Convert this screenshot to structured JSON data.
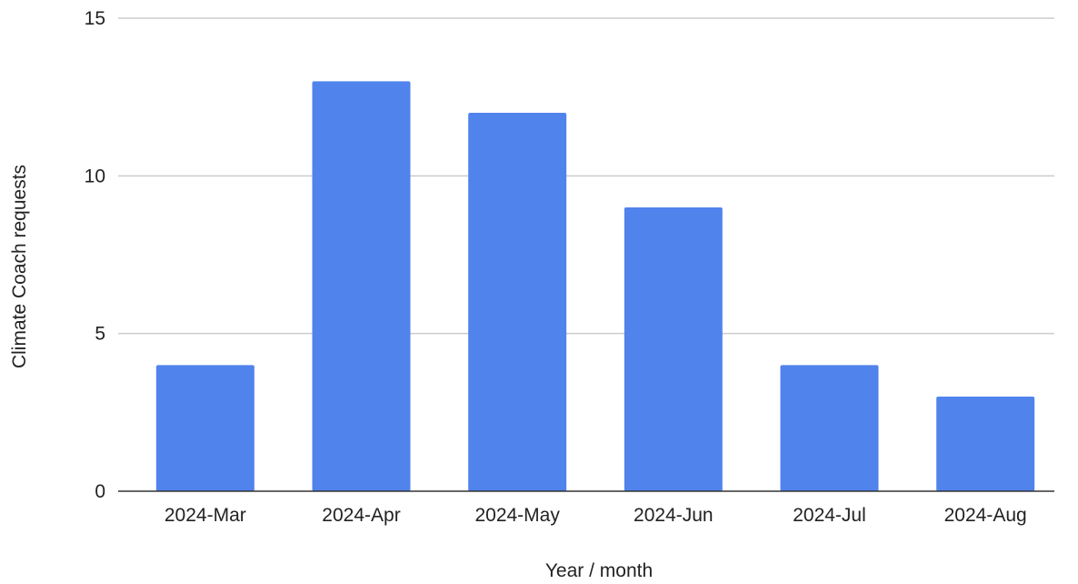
{
  "chart_data": {
    "type": "bar",
    "title": "",
    "xlabel": "Year / month",
    "ylabel": "Climate Coach requests",
    "categories": [
      "2024-Mar",
      "2024-Apr",
      "2024-May",
      "2024-Jun",
      "2024-Jul",
      "2024-Aug"
    ],
    "values": [
      4,
      13,
      12,
      9,
      4,
      3
    ],
    "ylim": [
      0,
      15
    ],
    "yticks": [
      0,
      5,
      10,
      15
    ],
    "grid": true,
    "legend": "none",
    "colors": {
      "bar": "#5083EC",
      "gridline": "#cccccc",
      "baseline": "#333333",
      "text": "#222222"
    }
  }
}
